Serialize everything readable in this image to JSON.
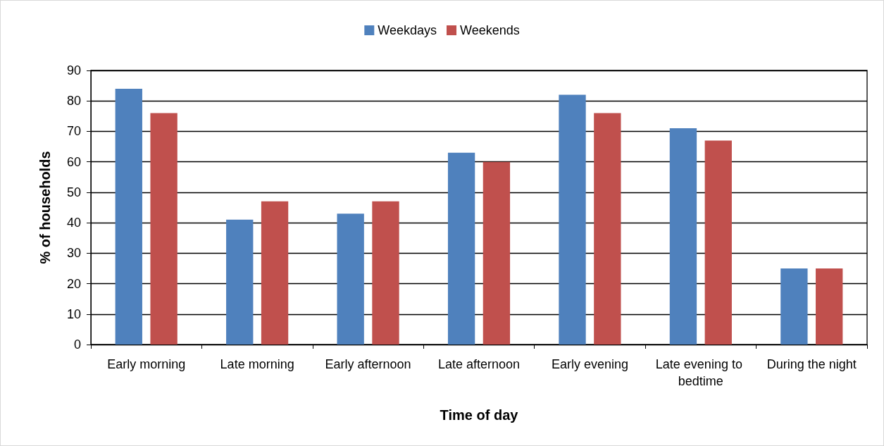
{
  "chart_data": {
    "type": "bar",
    "xlabel": "Time of day",
    "ylabel": "% of households",
    "categories": [
      "Early morning",
      "Late morning",
      "Early afternoon",
      "Late afternoon",
      "Early evening",
      "Late evening to bedtime",
      "During the night"
    ],
    "series": [
      {
        "name": "Weekdays",
        "color": "#4f81bd",
        "values": [
          84,
          41,
          43,
          63,
          82,
          71,
          25
        ]
      },
      {
        "name": "Weekends",
        "color": "#c0504d",
        "values": [
          76,
          47,
          47,
          60,
          76,
          67,
          25
        ]
      }
    ],
    "ylim": [
      0,
      90
    ],
    "yticks": [
      0,
      10,
      20,
      30,
      40,
      50,
      60,
      70,
      80,
      90
    ],
    "grid": "y",
    "legend": "top"
  }
}
